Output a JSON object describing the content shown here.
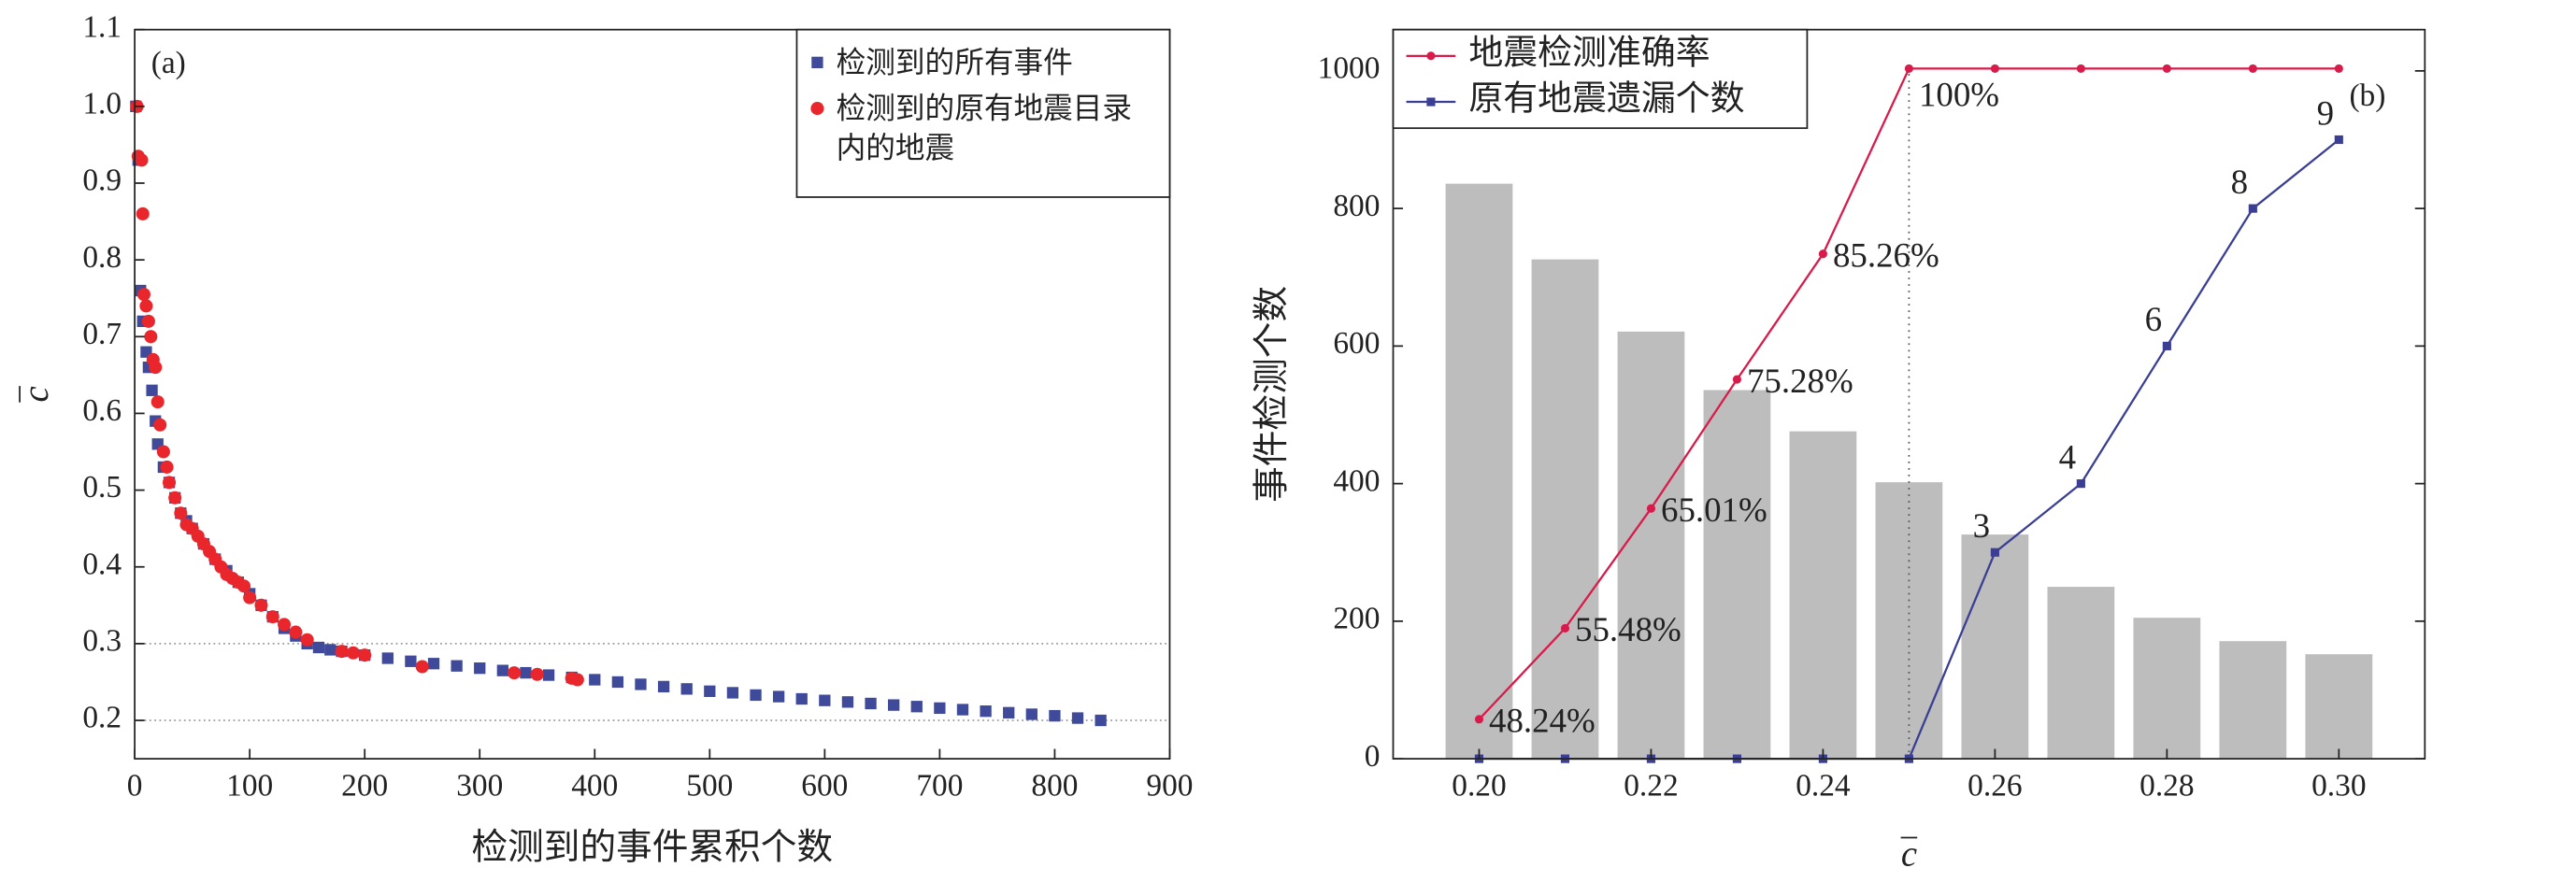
{
  "chart_data": [
    {
      "type": "scatter",
      "label": "(a)",
      "xlabel": "检测到的事件累积个数",
      "ylabel": "c",
      "xlim": [
        0,
        900
      ],
      "xticks": [
        0,
        100,
        200,
        300,
        400,
        500,
        600,
        700,
        800,
        900
      ],
      "ylim": [
        0.15,
        1.1
      ],
      "yticks": [
        0.2,
        0.3,
        0.4,
        0.5,
        0.6,
        0.7,
        0.8,
        0.9,
        {
          "value": 1,
          "label": "1.0"
        },
        1.1
      ],
      "reference_lines": [
        0.2,
        0.3
      ],
      "legend": "upper right",
      "series": [
        {
          "name": "检测到的所有事件",
          "color": "#3f4a9a",
          "marker": "square",
          "x": [
            1,
            3,
            5,
            7,
            10,
            12,
            15,
            18,
            20,
            25,
            30,
            35,
            40,
            45,
            50,
            60,
            70,
            80,
            90,
            100,
            110,
            120,
            130,
            140,
            150,
            160,
            170,
            180,
            200,
            220,
            240,
            260,
            280,
            300,
            320,
            340,
            360,
            380,
            400,
            420,
            440,
            460,
            480,
            500,
            520,
            540,
            560,
            580,
            600,
            620,
            640,
            660,
            680,
            700,
            720,
            740,
            760,
            780,
            800,
            820,
            840
          ],
          "values": [
            1.0,
            0.93,
            0.76,
            0.72,
            0.68,
            0.66,
            0.63,
            0.59,
            0.56,
            0.53,
            0.51,
            0.49,
            0.47,
            0.46,
            0.45,
            0.43,
            0.41,
            0.395,
            0.38,
            0.365,
            0.35,
            0.335,
            0.32,
            0.31,
            0.3,
            0.295,
            0.292,
            0.29,
            0.285,
            0.281,
            0.277,
            0.274,
            0.271,
            0.268,
            0.265,
            0.262,
            0.259,
            0.256,
            0.253,
            0.25,
            0.247,
            0.244,
            0.241,
            0.238,
            0.236,
            0.233,
            0.231,
            0.228,
            0.226,
            0.224,
            0.222,
            0.22,
            0.218,
            0.216,
            0.214,
            0.212,
            0.21,
            0.208,
            0.206,
            0.203,
            0.2
          ]
        },
        {
          "name": "检测到的原有地震目录内的地震",
          "color": "#e8262b",
          "marker": "circle",
          "x": [
            2,
            3,
            6,
            7,
            8,
            10,
            12,
            14,
            16,
            18,
            20,
            22,
            25,
            28,
            30,
            35,
            40,
            45,
            50,
            55,
            60,
            65,
            70,
            75,
            80,
            85,
            90,
            95,
            100,
            110,
            120,
            130,
            140,
            150,
            180,
            190,
            200,
            250,
            330,
            350,
            380,
            385
          ],
          "values": [
            1.0,
            0.935,
            0.93,
            0.86,
            0.755,
            0.74,
            0.72,
            0.7,
            0.67,
            0.66,
            0.615,
            0.585,
            0.55,
            0.53,
            0.51,
            0.49,
            0.47,
            0.455,
            0.45,
            0.44,
            0.43,
            0.42,
            0.41,
            0.4,
            0.39,
            0.385,
            0.38,
            0.375,
            0.36,
            0.35,
            0.335,
            0.325,
            0.315,
            0.305,
            0.29,
            0.288,
            0.285,
            0.27,
            0.262,
            0.26,
            0.255,
            0.253
          ]
        }
      ]
    },
    {
      "type": "bar-line",
      "label": "(b)",
      "xlabel": "c",
      "ylabel": "事件检测个数",
      "x": [
        0.2,
        0.21,
        0.22,
        0.23,
        0.24,
        0.25,
        0.26,
        0.27,
        0.28,
        0.29,
        0.3
      ],
      "xlim": [
        0.19,
        0.31
      ],
      "xticks": [
        {
          "value": 0.2,
          "label": "0.20"
        },
        {
          "value": 0.22,
          "label": "0.22"
        },
        {
          "value": 0.24,
          "label": "0.24"
        },
        {
          "value": 0.26,
          "label": "0.26"
        },
        {
          "value": 0.28,
          "label": "0.28"
        },
        {
          "value": 0.3,
          "label": "0.30"
        }
      ],
      "ylim": [
        0,
        1060
      ],
      "yticks": [
        0,
        200,
        400,
        600,
        800,
        1000
      ],
      "y2lim": [
        45.1,
        103.1
      ],
      "y3lim": [
        0,
        10.6
      ],
      "reference_x": 0.25,
      "legend": "upper left",
      "bars": {
        "color": "#bdbdbd",
        "values": [
          836,
          726,
          621,
          536,
          476,
          402,
          326,
          250,
          205,
          171,
          152
        ]
      },
      "series": [
        {
          "name": "地震检测准确率",
          "color": "#d81b4a",
          "axis": "y2",
          "values": [
            48.24,
            55.48,
            65.01,
            75.28,
            85.26,
            100,
            100,
            100,
            100,
            100,
            100
          ],
          "value_labels": [
            "48.24%",
            "55.48%",
            "65.01%",
            "75.28%",
            "85.26%",
            "100%",
            null,
            null,
            null,
            null,
            null
          ]
        },
        {
          "name": "原有地震遗漏个数",
          "color": "#3a3f94",
          "axis": "y3",
          "values": [
            0,
            0,
            0,
            0,
            0,
            0,
            3,
            4,
            6,
            8,
            9
          ],
          "value_labels": [
            null,
            null,
            null,
            null,
            null,
            null,
            "3",
            "4",
            "6",
            "8",
            "9"
          ]
        }
      ]
    }
  ]
}
